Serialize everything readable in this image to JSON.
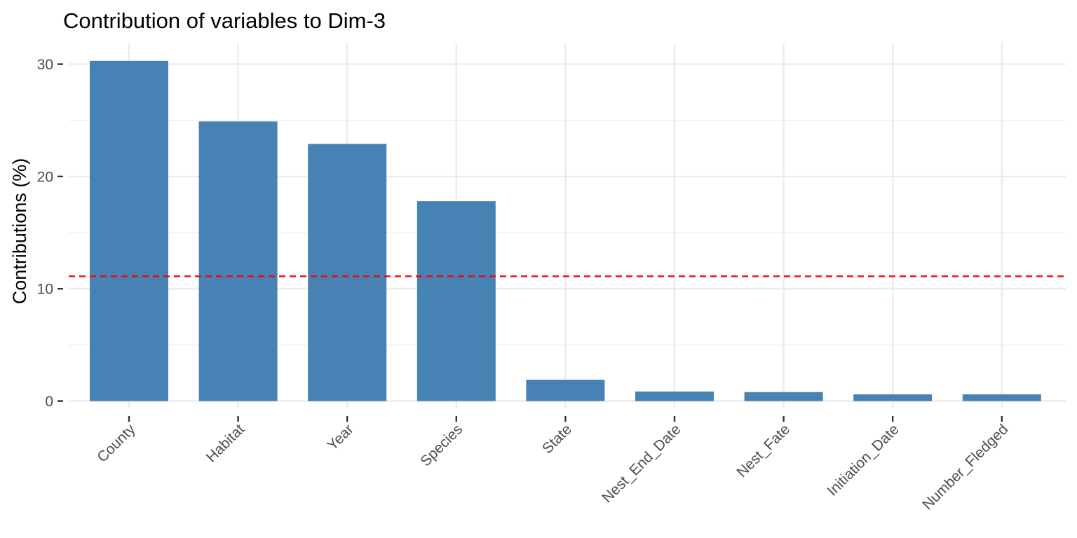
{
  "chart_data": {
    "type": "bar",
    "title": "Contribution of variables to Dim-3",
    "xlabel": "",
    "ylabel": "Contributions (%)",
    "categories": [
      "County",
      "Habitat",
      "Year",
      "Species",
      "State",
      "Nest_End_Date",
      "Nest_Fate",
      "Initiation_Date",
      "Number_Fledged"
    ],
    "values": [
      30.3,
      24.9,
      22.9,
      17.8,
      1.9,
      0.85,
      0.8,
      0.6,
      0.6
    ],
    "yticks": [
      0,
      10,
      20,
      30
    ],
    "ytick_labels": [
      "0",
      "10",
      "20",
      "30"
    ],
    "ylim": [
      -0.5,
      32
    ],
    "reference_line": {
      "value": 11.11,
      "color": "#ff0000",
      "style": "dashed"
    },
    "bar_color": "#4682b4",
    "grid": true,
    "legend": "none"
  }
}
